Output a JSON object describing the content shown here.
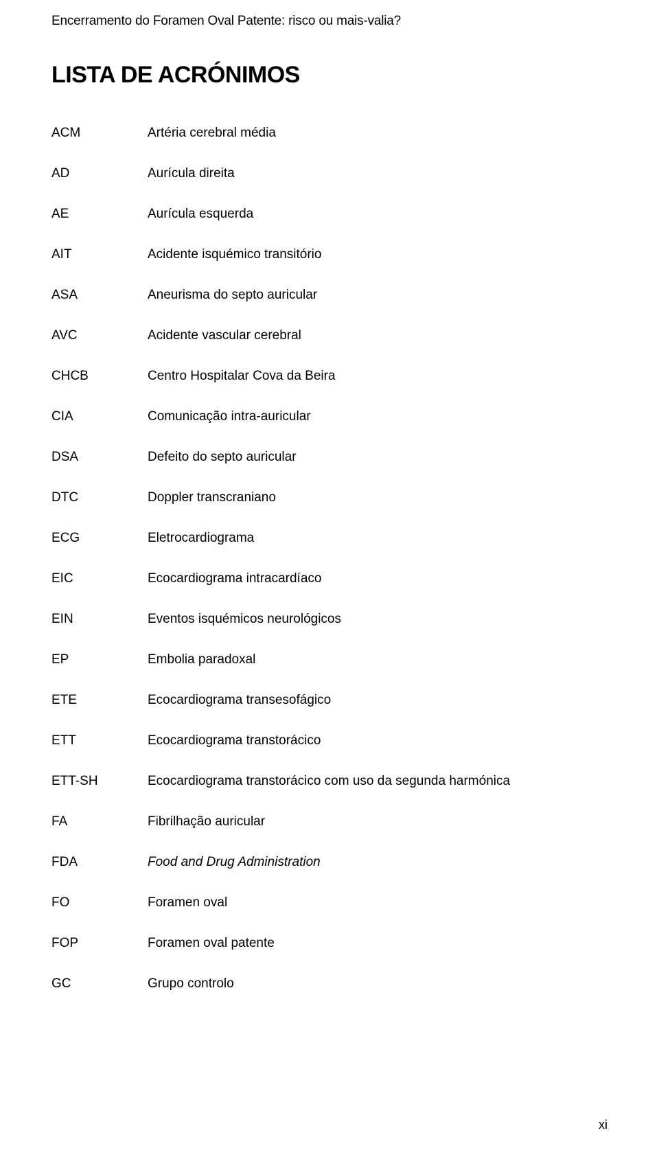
{
  "header": {
    "title": "Encerramento do Foramen Oval Patente: risco ou mais-valia?"
  },
  "heading": "LISTA DE ACRÓNIMOS",
  "acronyms": [
    {
      "abbr": "ACM",
      "def": "Artéria cerebral média",
      "italic": false
    },
    {
      "abbr": "AD",
      "def": "Aurícula direita",
      "italic": false
    },
    {
      "abbr": "AE",
      "def": "Aurícula esquerda",
      "italic": false
    },
    {
      "abbr": "AIT",
      "def": "Acidente isquémico transitório",
      "italic": false
    },
    {
      "abbr": "ASA",
      "def": "Aneurisma do septo auricular",
      "italic": false
    },
    {
      "abbr": "AVC",
      "def": "Acidente vascular cerebral",
      "italic": false
    },
    {
      "abbr": "CHCB",
      "def": "Centro Hospitalar Cova da Beira",
      "italic": false
    },
    {
      "abbr": "CIA",
      "def": "Comunicação intra-auricular",
      "italic": false
    },
    {
      "abbr": "DSA",
      "def": "Defeito do septo auricular",
      "italic": false
    },
    {
      "abbr": "DTC",
      "def": "Doppler transcraniano",
      "italic": false
    },
    {
      "abbr": "ECG",
      "def": "Eletrocardiograma",
      "italic": false
    },
    {
      "abbr": "EIC",
      "def": "Ecocardiograma intracardíaco",
      "italic": false
    },
    {
      "abbr": "EIN",
      "def": "Eventos isquémicos neurológicos",
      "italic": false
    },
    {
      "abbr": "EP",
      "def": "Embolia paradoxal",
      "italic": false
    },
    {
      "abbr": "ETE",
      "def": "Ecocardiograma transesofágico",
      "italic": false
    },
    {
      "abbr": "ETT",
      "def": "Ecocardiograma transtorácico",
      "italic": false
    },
    {
      "abbr": "ETT-SH",
      "def": "Ecocardiograma transtorácico com uso da segunda harmónica",
      "italic": false
    },
    {
      "abbr": "FA",
      "def": "Fibrilhação auricular",
      "italic": false
    },
    {
      "abbr": "FDA",
      "def": "Food and Drug Administration",
      "italic": true
    },
    {
      "abbr": "FO",
      "def": "Foramen oval",
      "italic": false
    },
    {
      "abbr": "FOP",
      "def": "Foramen oval patente",
      "italic": false
    },
    {
      "abbr": "GC",
      "def": "Grupo controlo",
      "italic": false
    }
  ],
  "page_number": "xi"
}
